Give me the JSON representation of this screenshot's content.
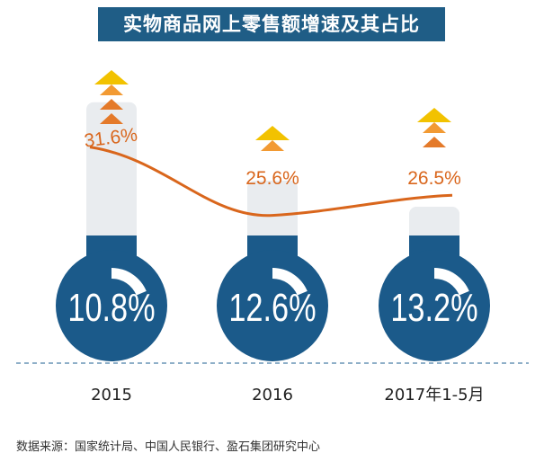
{
  "title": "实物商品网上零售额增速及其占比",
  "source": "数据来源：国家统计局、中国人民银行、盈石集团研究中心",
  "colors": {
    "circle": "#1b5a8a",
    "line": "#d9661c",
    "column": "#e9ecef",
    "arrow_top": "#f2c200",
    "arrow_mid": "#f29a33",
    "arrow_low": "#e47a2a"
  },
  "chart_data": {
    "type": "bar",
    "categories": [
      "2015",
      "2016",
      "2017年1-5月"
    ],
    "series": [
      {
        "values": [
          10.8,
          12.6,
          13.2
        ],
        "labels": [
          "10.8%",
          "12.6%",
          "13.2%"
        ]
      },
      {
        "values": [
          31.6,
          25.6,
          26.5
        ],
        "labels": [
          "31.6%",
          "25.6%",
          "26.5%"
        ]
      }
    ],
    "title": "实物商品网上零售额增速及其占比"
  }
}
